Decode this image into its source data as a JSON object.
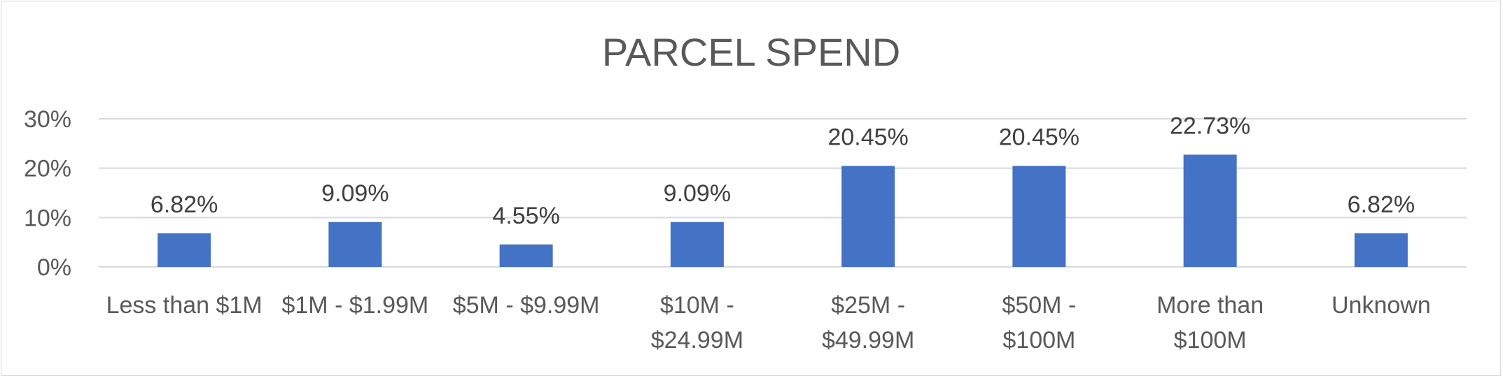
{
  "chart_data": {
    "type": "bar",
    "title": "PARCEL SPEND",
    "xlabel": "",
    "ylabel": "",
    "ylim": [
      0,
      30
    ],
    "yticks": [
      "0%",
      "10%",
      "20%",
      "30%"
    ],
    "ytick_values": [
      0,
      10,
      20,
      30
    ],
    "grid": true,
    "legend": "none",
    "bar_color": "#4472C4",
    "categories": [
      [
        "Less than $1M"
      ],
      [
        "$1M - $1.99M"
      ],
      [
        "$5M - $9.99M"
      ],
      [
        "$10M -",
        "$24.99M"
      ],
      [
        "$25M -",
        "$49.99M"
      ],
      [
        "$50M -",
        "$100M"
      ],
      [
        "More than",
        "$100M"
      ],
      [
        "Unknown"
      ]
    ],
    "values": [
      6.82,
      9.09,
      4.55,
      9.09,
      20.45,
      20.45,
      22.73,
      6.82
    ],
    "data_labels": [
      "6.82%",
      "9.09%",
      "4.55%",
      "9.09%",
      "20.45%",
      "20.45%",
      "22.73%",
      "6.82%"
    ]
  }
}
